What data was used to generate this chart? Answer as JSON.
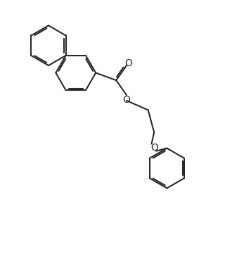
{
  "background_color": "#ffffff",
  "line_color": "#2a2a2a",
  "line_width": 1.5,
  "dbo": 0.06,
  "figsize": [
    3.2,
    3.88
  ],
  "dpi": 100,
  "xlim": [
    0.0,
    8.0
  ],
  "ylim": [
    -1.0,
    9.5
  ]
}
